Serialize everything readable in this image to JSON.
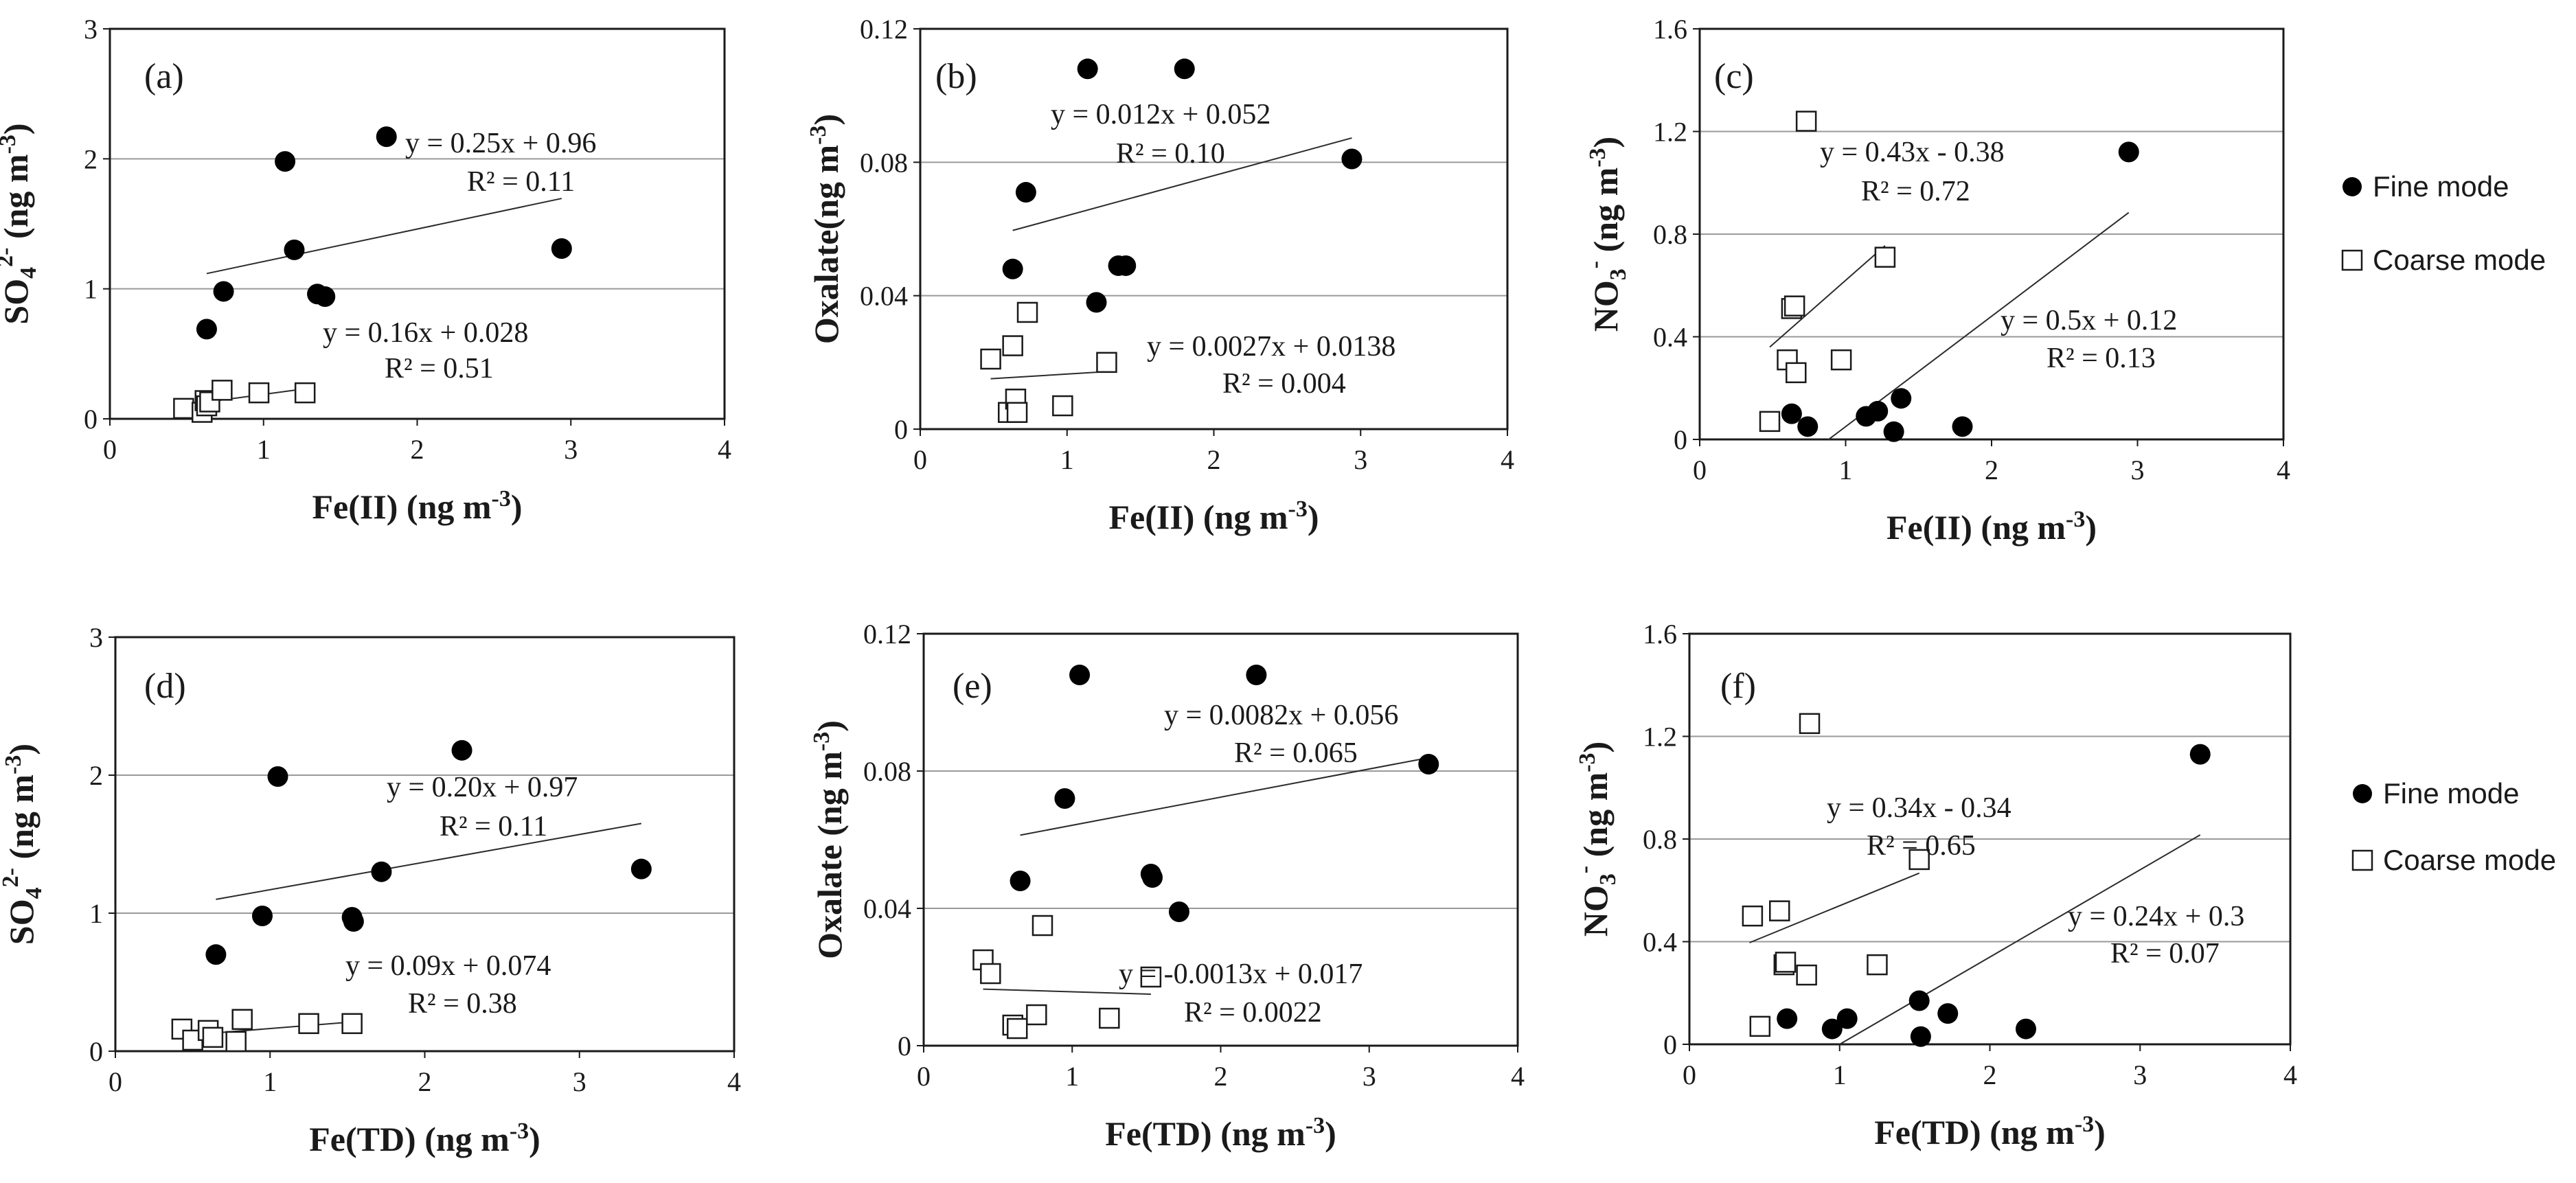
{
  "figure": {
    "legend": {
      "fine_label": "Fine mode",
      "coarse_label": "Coarse mode"
    }
  },
  "chart_data": [
    {
      "type": "scatter",
      "panel": "(a)",
      "xlabel": "Fe(II) (ng m",
      "xlabel_sup": "-3",
      "xlabel_end": ")",
      "ylabel": "SO",
      "ylabel_sub": "4",
      "ylabel_sup": "2-",
      "ylabel_end": " (ng m",
      "ylabel_sup2": "-3",
      "ylabel_end2": ")",
      "xlim": [
        0,
        4
      ],
      "ylim": [
        0,
        3
      ],
      "xticks": [
        0,
        1,
        2,
        3,
        4
      ],
      "yticks": [
        0,
        1,
        2,
        3
      ],
      "xtick_labels": [
        "0",
        "1",
        "2",
        "3",
        "4"
      ],
      "ytick_labels": [
        "0",
        "1",
        "2",
        "3"
      ],
      "gridlines": [
        1,
        2
      ],
      "series": [
        {
          "name": "Fine mode",
          "points": [
            [
              0.63,
              0.69
            ],
            [
              0.74,
              0.98
            ],
            [
              1.14,
              1.98
            ],
            [
              1.2,
              1.3
            ],
            [
              1.35,
              0.96
            ],
            [
              1.4,
              0.94
            ],
            [
              1.8,
              2.17
            ],
            [
              2.94,
              1.31
            ]
          ],
          "fit": {
            "x1": 0.63,
            "x2": 2.94,
            "slope": 0.25,
            "intercept": 0.96
          },
          "equation": "y = 0.25x + 0.96",
          "r2": "R² = 0.11"
        },
        {
          "name": "Coarse mode",
          "points": [
            [
              0.48,
              0.08
            ],
            [
              0.6,
              0.05
            ],
            [
              0.62,
              0.14
            ],
            [
              0.63,
              0.1
            ],
            [
              0.65,
              0.13
            ],
            [
              0.73,
              0.22
            ],
            [
              0.97,
              0.2
            ],
            [
              1.27,
              0.2
            ]
          ],
          "fit": {
            "x1": 0.48,
            "x2": 1.27,
            "slope": 0.16,
            "intercept": 0.028
          },
          "equation": "y = 0.16x + 0.028",
          "r2": "R² = 0.51"
        }
      ]
    },
    {
      "type": "scatter",
      "panel": "(b)",
      "xlabel": "Fe(II) (ng m",
      "xlabel_sup": "-3",
      "xlabel_end": ")",
      "ylabel": "Oxalate(ng m",
      "ylabel_sub": "",
      "ylabel_sup": "-3",
      "ylabel_end": ")",
      "ylabel_sup2": "",
      "ylabel_end2": "",
      "xlim": [
        0,
        4
      ],
      "ylim": [
        0,
        0.12
      ],
      "xticks": [
        0,
        1,
        2,
        3,
        4
      ],
      "yticks": [
        0,
        0.04,
        0.08,
        0.12
      ],
      "xtick_labels": [
        "0",
        "1",
        "2",
        "3",
        "4"
      ],
      "ytick_labels": [
        "0",
        "0.04",
        "0.08",
        "0.12"
      ],
      "gridlines": [
        0.04,
        0.08
      ],
      "series": [
        {
          "name": "Fine mode",
          "points": [
            [
              0.63,
              0.048
            ],
            [
              0.72,
              0.071
            ],
            [
              1.14,
              0.108
            ],
            [
              1.2,
              0.038
            ],
            [
              1.35,
              0.049
            ],
            [
              1.4,
              0.049
            ],
            [
              1.8,
              0.108
            ],
            [
              2.94,
              0.081
            ]
          ],
          "fit": {
            "x1": 0.63,
            "x2": 2.94,
            "slope": 0.012,
            "intercept": 0.052
          },
          "equation": "y = 0.012x + 0.052",
          "r2": "R² = 0.10"
        },
        {
          "name": "Coarse mode",
          "points": [
            [
              0.48,
              0.021
            ],
            [
              0.6,
              0.005
            ],
            [
              0.63,
              0.025
            ],
            [
              0.65,
              0.009
            ],
            [
              0.66,
              0.005
            ],
            [
              0.73,
              0.035
            ],
            [
              0.97,
              0.007
            ],
            [
              1.27,
              0.02
            ]
          ],
          "fit": {
            "x1": 0.48,
            "x2": 1.27,
            "slope": 0.0027,
            "intercept": 0.0138
          },
          "equation": "y = 0.0027x + 0.0138",
          "r2": "R² = 0.004"
        }
      ]
    },
    {
      "type": "scatter",
      "panel": "(c)",
      "xlabel": "Fe(II) (ng m",
      "xlabel_sup": "-3",
      "xlabel_end": ")",
      "ylabel": "NO",
      "ylabel_sub": "3",
      "ylabel_sup": "-",
      "ylabel_end": " (ng m",
      "ylabel_sup2": "-3",
      "ylabel_end2": ")",
      "xlim": [
        0,
        4
      ],
      "ylim": [
        0,
        1.6
      ],
      "xticks": [
        0,
        1,
        2,
        3,
        4
      ],
      "yticks": [
        0,
        0.4,
        0.8,
        1.2,
        1.6
      ],
      "xtick_labels": [
        "0",
        "1",
        "2",
        "3",
        "4"
      ],
      "ytick_labels": [
        "0",
        "0.4",
        "0.8",
        "1.2",
        "1.6"
      ],
      "gridlines": [
        0.4,
        0.8,
        1.2
      ],
      "series": [
        {
          "name": "Fine mode",
          "points": [
            [
              0.63,
              0.1
            ],
            [
              0.74,
              0.05
            ],
            [
              1.14,
              0.09
            ],
            [
              1.22,
              0.11
            ],
            [
              1.33,
              0.03
            ],
            [
              1.38,
              0.16
            ],
            [
              1.8,
              0.05
            ],
            [
              2.94,
              1.12
            ]
          ],
          "fit": {
            "x1": 0.88,
            "x2": 2.94,
            "slope": 0.43,
            "intercept": -0.38
          },
          "equation": "y = 0.43x - 0.38",
          "r2": "R² = 0.72"
        },
        {
          "name": "Coarse mode",
          "points": [
            [
              0.48,
              0.07
            ],
            [
              0.6,
              0.31
            ],
            [
              0.63,
              0.51
            ],
            [
              0.65,
              0.52
            ],
            [
              0.66,
              0.26
            ],
            [
              0.73,
              1.24
            ],
            [
              0.97,
              0.31
            ],
            [
              1.27,
              0.71
            ]
          ],
          "fit": {
            "x1": 0.48,
            "x2": 1.27,
            "slope": 0.5,
            "intercept": 0.12
          },
          "equation": "y = 0.5x + 0.12",
          "r2": "R² = 0.13"
        }
      ]
    },
    {
      "type": "scatter",
      "panel": "(d)",
      "xlabel": "Fe(TD) (ng m",
      "xlabel_sup": "-3",
      "xlabel_end": ")",
      "ylabel": "SO",
      "ylabel_sub": "4",
      "ylabel_sup": "2-",
      "ylabel_end": " (ng m",
      "ylabel_sup2": "-3",
      "ylabel_end2": ")",
      "xlim": [
        0,
        4
      ],
      "ylim": [
        0,
        3
      ],
      "xticks": [
        0,
        1,
        2,
        3,
        4
      ],
      "yticks": [
        0,
        1,
        2,
        3
      ],
      "xtick_labels": [
        "0",
        "1",
        "2",
        "3",
        "4"
      ],
      "ytick_labels": [
        "0",
        "1",
        "2",
        "3"
      ],
      "gridlines": [
        1,
        2
      ],
      "series": [
        {
          "name": "Fine mode",
          "points": [
            [
              0.65,
              0.7
            ],
            [
              0.95,
              0.98
            ],
            [
              1.05,
              1.99
            ],
            [
              1.53,
              0.97
            ],
            [
              1.54,
              0.94
            ],
            [
              1.72,
              1.3
            ],
            [
              2.24,
              2.18
            ],
            [
              3.4,
              1.32
            ]
          ],
          "fit": {
            "x1": 0.65,
            "x2": 3.4,
            "slope": 0.2,
            "intercept": 0.97
          },
          "equation": "y = 0.20x + 0.97",
          "r2": "R² = 0.11"
        },
        {
          "name": "Coarse mode",
          "points": [
            [
              0.43,
              0.16
            ],
            [
              0.5,
              0.08
            ],
            [
              0.6,
              0.15
            ],
            [
              0.63,
              0.1
            ],
            [
              0.78,
              0.07
            ],
            [
              0.82,
              0.23
            ],
            [
              1.25,
              0.2
            ],
            [
              1.53,
              0.2
            ]
          ],
          "fit": {
            "x1": 0.43,
            "x2": 1.53,
            "slope": 0.09,
            "intercept": 0.074
          },
          "equation": "y = 0.09x + 0.074",
          "r2": "R² = 0.38"
        }
      ]
    },
    {
      "type": "scatter",
      "panel": "(e)",
      "xlabel": "Fe(TD) (ng m",
      "xlabel_sup": "-3",
      "xlabel_end": ")",
      "ylabel": "Oxalate (ng m",
      "ylabel_sub": "",
      "ylabel_sup": "-3",
      "ylabel_end": ")",
      "ylabel_sup2": "",
      "ylabel_end2": "",
      "xlim": [
        0,
        4
      ],
      "ylim": [
        0,
        0.12
      ],
      "xticks": [
        0,
        1,
        2,
        3,
        4
      ],
      "yticks": [
        0,
        0.04,
        0.08,
        0.12
      ],
      "xtick_labels": [
        "0",
        "1",
        "2",
        "3",
        "4"
      ],
      "ytick_labels": [
        "0",
        "0.04",
        "0.08",
        "0.12"
      ],
      "gridlines": [
        0.04,
        0.08
      ],
      "series": [
        {
          "name": "Fine mode",
          "points": [
            [
              0.65,
              0.048
            ],
            [
              0.95,
              0.072
            ],
            [
              1.05,
              0.108
            ],
            [
              1.53,
              0.05
            ],
            [
              1.54,
              0.049
            ],
            [
              1.72,
              0.039
            ],
            [
              2.24,
              0.108
            ],
            [
              3.4,
              0.082
            ]
          ],
          "fit": {
            "x1": 0.65,
            "x2": 3.4,
            "slope": 0.0082,
            "intercept": 0.056
          },
          "equation": "y = 0.0082x + 0.056",
          "r2": "R² = 0.065"
        },
        {
          "name": "Coarse mode",
          "points": [
            [
              0.4,
              0.025
            ],
            [
              0.45,
              0.021
            ],
            [
              0.6,
              0.006
            ],
            [
              0.63,
              0.005
            ],
            [
              0.76,
              0.009
            ],
            [
              0.8,
              0.035
            ],
            [
              1.25,
              0.008
            ],
            [
              1.53,
              0.02
            ]
          ],
          "fit": {
            "x1": 0.4,
            "x2": 1.53,
            "slope": -0.0013,
            "intercept": 0.017
          },
          "equation": "y = -0.0013x + 0.017",
          "r2": "R² = 0.0022"
        }
      ]
    },
    {
      "type": "scatter",
      "panel": "(f)",
      "xlabel": "Fe(TD) (ng m",
      "xlabel_sup": "-3",
      "xlabel_end": ")",
      "ylabel": "NO",
      "ylabel_sub": "3",
      "ylabel_sup": "-",
      "ylabel_end": " (ng m",
      "ylabel_sup2": "-3",
      "ylabel_end2": ")",
      "xlim": [
        0,
        4
      ],
      "ylim": [
        0,
        1.6
      ],
      "xticks": [
        0,
        1,
        2,
        3,
        4
      ],
      "yticks": [
        0,
        0.4,
        0.8,
        1.2,
        1.6
      ],
      "xtick_labels": [
        "0",
        "1",
        "2",
        "3",
        "4"
      ],
      "ytick_labels": [
        "0",
        "0.4",
        "0.8",
        "1.2",
        "1.6"
      ],
      "gridlines": [
        0.4,
        0.8,
        1.2
      ],
      "series": [
        {
          "name": "Fine mode",
          "points": [
            [
              0.65,
              0.1
            ],
            [
              0.95,
              0.06
            ],
            [
              1.05,
              0.1
            ],
            [
              1.53,
              0.17
            ],
            [
              1.54,
              0.03
            ],
            [
              1.72,
              0.12
            ],
            [
              2.24,
              0.06
            ],
            [
              3.4,
              1.13
            ]
          ],
          "fit": {
            "x1": 1.0,
            "x2": 3.4,
            "slope": 0.34,
            "intercept": -0.34
          },
          "equation": "y = 0.34x - 0.34",
          "r2": "R² = 0.65"
        },
        {
          "name": "Coarse mode",
          "points": [
            [
              0.42,
              0.5
            ],
            [
              0.47,
              0.07
            ],
            [
              0.6,
              0.52
            ],
            [
              0.63,
              0.31
            ],
            [
              0.64,
              0.32
            ],
            [
              0.78,
              0.27
            ],
            [
              0.8,
              1.25
            ],
            [
              1.25,
              0.31
            ],
            [
              1.53,
              0.72
            ]
          ],
          "fit": {
            "x1": 0.4,
            "x2": 1.53,
            "slope": 0.24,
            "intercept": 0.3
          },
          "equation": "y = 0.24x + 0.3",
          "r2": "R² = 0.07"
        }
      ]
    }
  ]
}
